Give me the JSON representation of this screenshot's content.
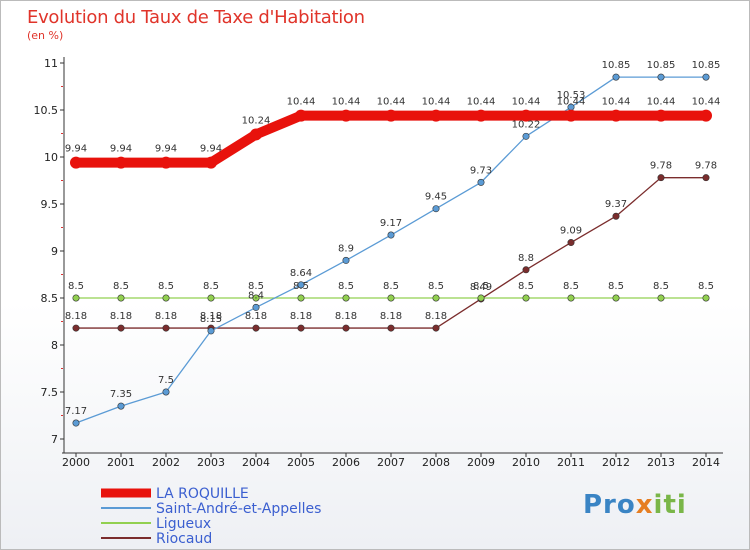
{
  "title": "Evolution du Taux de Taxe d'Habitation",
  "unit": "(en %)",
  "logo": {
    "part1": "Pro",
    "part2": "x",
    "part3": "iti"
  },
  "chart_data": {
    "type": "line",
    "title": "Evolution du Taux de Taxe d'Habitation",
    "ylabel": "(en %)",
    "xlabel": "",
    "x": [
      2000,
      2001,
      2002,
      2003,
      2004,
      2005,
      2006,
      2007,
      2008,
      2009,
      2010,
      2011,
      2012,
      2013,
      2014
    ],
    "ylim": [
      7,
      11
    ],
    "yticks": [
      "7",
      "7.5",
      "8",
      "8.5",
      "9",
      "9.5",
      "10",
      "10.5",
      "11"
    ],
    "legend": "bottom-left",
    "series": [
      {
        "name": "LA ROQUILLE",
        "color": "#e8120c",
        "values": [
          9.94,
          9.94,
          9.94,
          9.94,
          10.24,
          10.44,
          10.44,
          10.44,
          10.44,
          10.44,
          10.44,
          10.44,
          10.44,
          10.44,
          10.44
        ],
        "labels": [
          "9.94",
          "9.94",
          "9.94",
          "9.94",
          "10.24",
          "10.44",
          "10.44",
          "10.44",
          "10.44",
          "10.44",
          "10.44",
          "10.44",
          "10.44",
          "10.44",
          "10.44"
        ]
      },
      {
        "name": "Saint-André-et-Appelles",
        "color": "#5b9bd5",
        "values": [
          7.17,
          7.35,
          7.5,
          8.15,
          8.4,
          8.64,
          8.9,
          9.17,
          9.45,
          9.73,
          10.22,
          10.53,
          10.85,
          10.85,
          10.85
        ],
        "labels": [
          "7.17",
          "7.35",
          "7.5",
          "8.15",
          "8.4",
          "8.64",
          "8.9",
          "9.17",
          "9.45",
          "9.73",
          "10.22",
          "10.53",
          "10.85",
          "10.85",
          "10.85"
        ]
      },
      {
        "name": "Ligueux",
        "color": "#92d050",
        "values": [
          8.5,
          8.5,
          8.5,
          8.5,
          8.5,
          8.5,
          8.5,
          8.5,
          8.5,
          8.5,
          8.5,
          8.5,
          8.5,
          8.5,
          8.5
        ],
        "labels": [
          "8.5",
          "8.5",
          "8.5",
          "8.5",
          "8.5",
          "8.5",
          "8.5",
          "8.5",
          "8.5",
          "8.5",
          "8.5",
          "8.5",
          "8.5",
          "8.5",
          "8.5"
        ]
      },
      {
        "name": "Riocaud",
        "color": "#7b2d2d",
        "values": [
          8.18,
          8.18,
          8.18,
          8.18,
          8.18,
          8.18,
          8.18,
          8.18,
          8.18,
          8.49,
          8.8,
          9.09,
          9.37,
          9.78,
          9.78
        ],
        "labels": [
          "8.18",
          "8.18",
          "8.18",
          "8.18",
          "8.18",
          "8.18",
          "8.18",
          "8.18",
          "8.18",
          "8.49",
          "8.8",
          "9.09",
          "9.37",
          "9.78",
          "9.78"
        ]
      }
    ]
  }
}
